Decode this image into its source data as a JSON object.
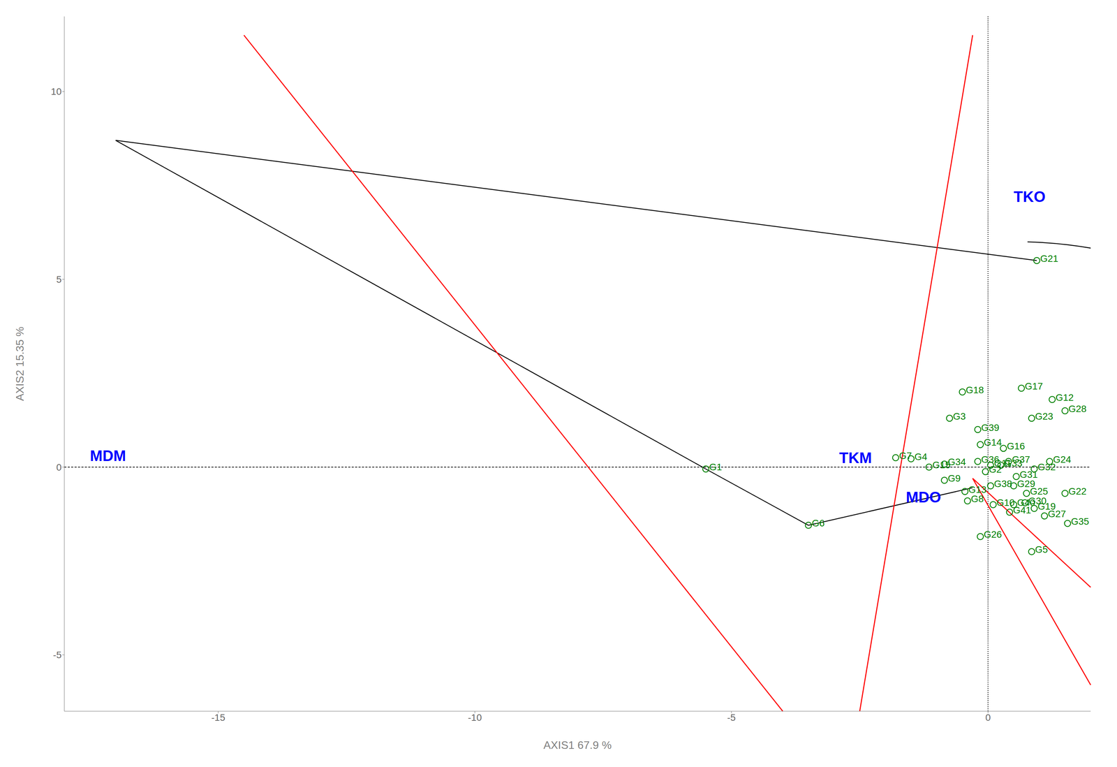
{
  "chart_data": {
    "type": "scatter",
    "xlabel": "AXIS1 67.9 %",
    "ylabel": "AXIS2 15.35 %",
    "xlim": [
      -18,
      2
    ],
    "ylim": [
      -6.5,
      12
    ],
    "xticks": [
      -15,
      -10,
      -5,
      0
    ],
    "yticks": [
      -5,
      0,
      5,
      10
    ],
    "grid": false,
    "color": "green",
    "marker": "circle",
    "x": [
      -5.5,
      -3.5,
      0.95,
      0.65,
      -0.5,
      1.25,
      1.5,
      0.85,
      -0.75,
      -0.2,
      -1.5,
      -0.2,
      0.4,
      1.2,
      -0.85,
      0.9,
      -0.85,
      0.75,
      1.5,
      -0.4,
      0.1,
      0.5,
      0.9,
      1.1,
      1.55,
      -0.15,
      0.85,
      0.05,
      0.25,
      -0.05,
      -1.15,
      0.05,
      0.5,
      -1.8,
      0.3,
      0.55,
      0.72,
      0.42,
      -0.15,
      -0.45
    ],
    "values": [
      -0.05,
      -1.55,
      5.5,
      2.1,
      2.0,
      1.8,
      1.5,
      1.3,
      1.3,
      1.0,
      0.22,
      0.15,
      0.15,
      0.15,
      0.08,
      -0.05,
      -0.35,
      -0.7,
      -0.7,
      -0.9,
      -1.0,
      -1.0,
      -1.1,
      -1.3,
      -1.5,
      -1.85,
      -2.25,
      0.05,
      0.05,
      -0.12,
      0.0,
      -0.5,
      -0.5,
      0.25,
      0.5,
      -0.25,
      -0.95,
      -1.2,
      0.6,
      -0.65
    ],
    "point_labels": [
      "G1",
      "G6",
      "G21",
      "G17",
      "G18",
      "G12",
      "G28",
      "G23",
      "G3",
      "G39",
      "G4",
      "G36",
      "G37",
      "G24",
      "G34",
      "G32",
      "G9",
      "G25",
      "G22",
      "G8",
      "G10",
      "G40",
      "G19",
      "G27",
      "G35",
      "G26",
      "G5",
      "G11",
      "G33",
      "G2",
      "G15",
      "G38",
      "G29",
      "G7",
      "G16",
      "G31",
      "G30",
      "G41",
      "G14",
      "G13"
    ],
    "annotations": [
      {
        "text": "TKO",
        "x": 0.5,
        "y": 7.2,
        "color": "blue"
      },
      {
        "text": "MDM",
        "x": -17.5,
        "y": 0.3,
        "color": "blue"
      },
      {
        "text": "TKM",
        "x": -2.9,
        "y": 0.25,
        "color": "blue"
      },
      {
        "text": "MDO",
        "x": -1.6,
        "y": -0.8,
        "color": "blue"
      }
    ],
    "line_segments": [
      {
        "color": "black",
        "points": [
          [
            -17.0,
            8.7
          ],
          [
            0.95,
            5.5
          ]
        ]
      },
      {
        "color": "black",
        "points": [
          [
            -17.0,
            8.7
          ],
          [
            -5.5,
            -0.05
          ]
        ]
      },
      {
        "color": "black",
        "points": [
          [
            -5.5,
            -0.05
          ],
          [
            -3.5,
            -1.55
          ]
        ]
      },
      {
        "color": "black",
        "points": [
          [
            -3.5,
            -1.55
          ],
          [
            -0.3,
            -0.55
          ]
        ]
      },
      {
        "color": "red",
        "points": [
          [
            -0.3,
            11.5
          ],
          [
            -2.5,
            -6.5
          ]
        ]
      },
      {
        "color": "red",
        "points": [
          [
            -14.5,
            11.5
          ],
          [
            -4.0,
            -6.5
          ]
        ]
      },
      {
        "color": "red",
        "points": [
          [
            -0.3,
            -0.3
          ],
          [
            2.0,
            -5.8
          ]
        ]
      },
      {
        "color": "red",
        "points": [
          [
            -0.3,
            -0.3
          ],
          [
            2.0,
            -3.2
          ]
        ]
      }
    ],
    "arc": {
      "center": [
        0.55,
        -0.3
      ],
      "radius_x": 6.3,
      "radius_y": 6.3,
      "angle_start": -68,
      "angle_end": 88,
      "color": "black"
    },
    "reference_lines": {
      "x": [
        0
      ],
      "y": [
        0
      ]
    }
  }
}
